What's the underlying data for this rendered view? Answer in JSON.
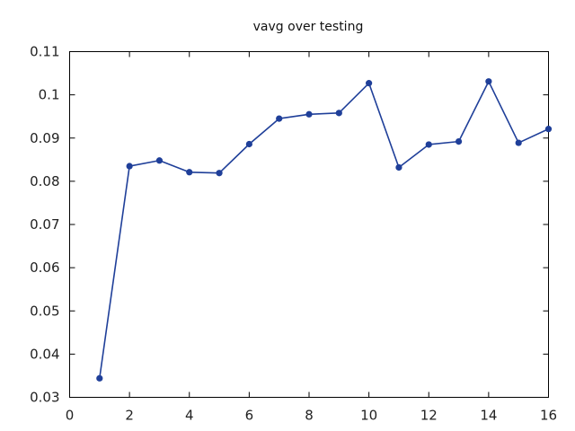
{
  "chart_data": {
    "type": "line",
    "title": "vavg over testing",
    "xlabel": "",
    "ylabel": "",
    "xlim": [
      0,
      16
    ],
    "ylim": [
      0.03,
      0.11
    ],
    "x_ticks": [
      0,
      2,
      4,
      6,
      8,
      10,
      12,
      14,
      16
    ],
    "y_ticks": [
      0.03,
      0.04,
      0.05,
      0.06,
      0.07,
      0.08,
      0.09,
      0.1,
      0.11
    ],
    "x_tick_labels": [
      "0",
      "2",
      "4",
      "6",
      "8",
      "10",
      "12",
      "14",
      "16"
    ],
    "y_tick_labels": [
      "0.03",
      "0.04",
      "0.05",
      "0.06",
      "0.07",
      "0.08",
      "0.09",
      "0.1",
      "0.11"
    ],
    "grid": false,
    "series": [
      {
        "color": "#1f3f99",
        "x": [
          1,
          2,
          3,
          4,
          5,
          6,
          7,
          8,
          9,
          10,
          11,
          12,
          13,
          14,
          15,
          16
        ],
        "y": [
          0.0344,
          0.0835,
          0.0848,
          0.0821,
          0.0819,
          0.0886,
          0.0945,
          0.0955,
          0.0958,
          0.1027,
          0.0832,
          0.0885,
          0.0892,
          0.1031,
          0.0889,
          0.0921
        ]
      }
    ]
  }
}
